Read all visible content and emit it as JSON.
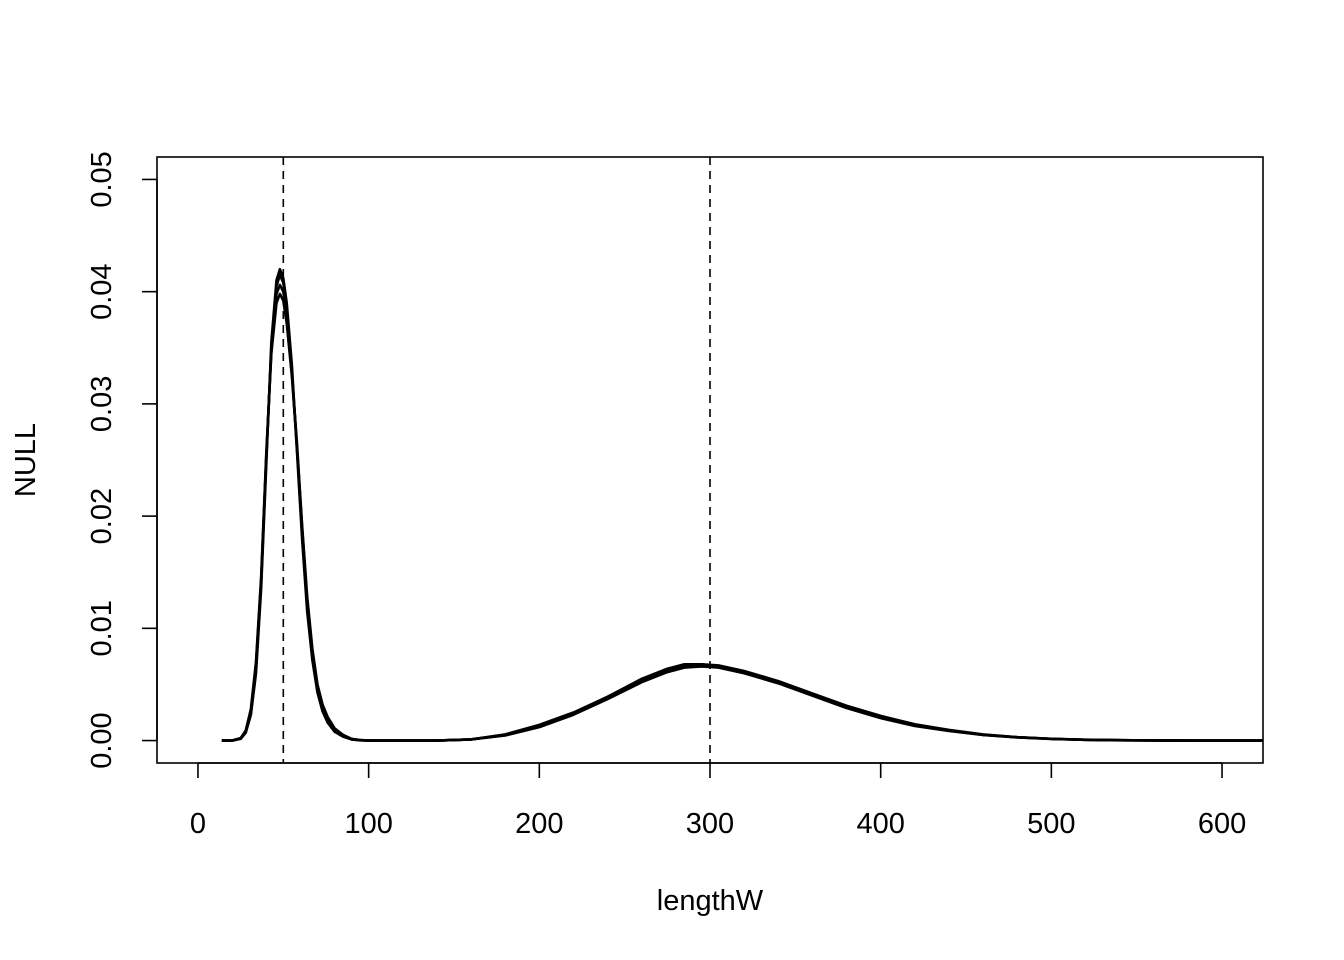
{
  "chart_data": {
    "type": "line",
    "title": "",
    "xlabel": "lengthW",
    "ylabel": "NULL",
    "xlim": [
      -24,
      624
    ],
    "ylim": [
      -0.002,
      0.052
    ],
    "x_ticks": [
      0,
      100,
      200,
      300,
      400,
      500,
      600
    ],
    "x_tick_labels": [
      "0",
      "100",
      "200",
      "300",
      "400",
      "500",
      "600"
    ],
    "y_ticks": [
      0.0,
      0.01,
      0.02,
      0.03,
      0.04,
      0.05
    ],
    "y_tick_labels": [
      "0.00",
      "0.01",
      "0.02",
      "0.03",
      "0.04",
      "0.05"
    ],
    "grid": false,
    "legend": "none",
    "line_color": "#000000",
    "reference_lines": [
      {
        "orientation": "vertical",
        "x": 50,
        "style": "dashed"
      },
      {
        "orientation": "vertical",
        "x": 300,
        "style": "dashed"
      }
    ],
    "series": [
      {
        "x": [
          14,
          20,
          25,
          28,
          31,
          34,
          37,
          40,
          43,
          46,
          48,
          50,
          52,
          55,
          58,
          61,
          64,
          67,
          70,
          73,
          76,
          80,
          85,
          90,
          95,
          100,
          110,
          120,
          140,
          160,
          180,
          200,
          220,
          240,
          260,
          275,
          285,
          295,
          305,
          320,
          340,
          360,
          380,
          400,
          420,
          440,
          460,
          480,
          500,
          520,
          540,
          560,
          580,
          600,
          624
        ],
        "y": [
          0.0,
          0.0,
          0.0002,
          0.0008,
          0.0025,
          0.0065,
          0.014,
          0.025,
          0.035,
          0.0405,
          0.0415,
          0.0408,
          0.0385,
          0.033,
          0.026,
          0.0185,
          0.012,
          0.0075,
          0.0045,
          0.0028,
          0.0018,
          0.0009,
          0.0004,
          0.0001,
          3e-05,
          0.0,
          0.0,
          0.0,
          0.0,
          0.0001,
          0.0005,
          0.0013,
          0.0024,
          0.0038,
          0.0053,
          0.0062,
          0.0066,
          0.0067,
          0.0066,
          0.0061,
          0.0052,
          0.0041,
          0.003,
          0.0021,
          0.0014,
          0.0009,
          0.0005,
          0.0003,
          0.00015,
          7e-05,
          3e-05,
          1e-05,
          0.0,
          0.0,
          0.0
        ]
      },
      {
        "x": [
          14,
          20,
          25,
          28,
          31,
          34,
          37,
          40,
          43,
          46,
          48,
          50,
          52,
          55,
          58,
          61,
          64,
          67,
          70,
          73,
          76,
          80,
          85,
          90,
          95,
          100,
          110,
          120,
          140,
          160,
          180,
          200,
          220,
          240,
          260,
          275,
          285,
          295,
          305,
          320,
          340,
          360,
          380,
          400,
          420,
          440,
          460,
          480,
          500,
          520,
          540,
          560,
          580,
          600,
          624
        ],
        "y": [
          0.0,
          0.0,
          0.0002,
          0.0009,
          0.0028,
          0.007,
          0.0145,
          0.0255,
          0.0345,
          0.039,
          0.0398,
          0.0392,
          0.0372,
          0.0325,
          0.0262,
          0.019,
          0.0125,
          0.008,
          0.0049,
          0.0031,
          0.002,
          0.001,
          0.0005,
          0.00015,
          5e-05,
          0.0,
          0.0,
          0.0,
          0.0,
          0.0001,
          0.00055,
          0.0014,
          0.0025,
          0.0039,
          0.0055,
          0.0064,
          0.0068,
          0.0068,
          0.0067,
          0.0062,
          0.0053,
          0.0042,
          0.0031,
          0.0022,
          0.00145,
          0.00095,
          0.00055,
          0.0003,
          0.00016,
          8e-05,
          3e-05,
          1e-05,
          0.0,
          0.0,
          0.0
        ]
      },
      {
        "x": [
          14,
          20,
          25,
          28,
          31,
          34,
          37,
          40,
          43,
          46,
          48,
          50,
          52,
          55,
          58,
          61,
          64,
          67,
          70,
          73,
          76,
          80,
          85,
          90,
          95,
          100,
          110,
          120,
          140,
          160,
          180,
          200,
          220,
          240,
          260,
          275,
          285,
          295,
          305,
          320,
          340,
          360,
          380,
          400,
          420,
          440,
          460,
          480,
          500,
          520,
          540,
          560,
          580,
          600,
          624
        ],
        "y": [
          0.0,
          0.0,
          0.00015,
          0.0007,
          0.0023,
          0.006,
          0.0135,
          0.0245,
          0.0355,
          0.041,
          0.042,
          0.0412,
          0.039,
          0.0335,
          0.0258,
          0.018,
          0.0115,
          0.0072,
          0.0043,
          0.0026,
          0.0016,
          0.0008,
          0.00035,
          0.0001,
          2e-05,
          0.0,
          0.0,
          0.0,
          0.0,
          0.0001,
          0.00045,
          0.0012,
          0.0023,
          0.0037,
          0.0052,
          0.0061,
          0.0065,
          0.0066,
          0.0065,
          0.006,
          0.0051,
          0.004,
          0.0029,
          0.002,
          0.0013,
          0.00085,
          0.0005,
          0.00028,
          0.00014,
          6e-05,
          2e-05,
          1e-05,
          0.0,
          0.0,
          0.0
        ]
      },
      {
        "x": [
          14,
          20,
          25,
          28,
          31,
          34,
          37,
          40,
          43,
          46,
          48,
          50,
          52,
          55,
          58,
          61,
          64,
          67,
          70,
          73,
          76,
          80,
          85,
          90,
          95,
          100,
          110,
          120,
          140,
          160,
          180,
          200,
          220,
          240,
          260,
          275,
          285,
          295,
          305,
          320,
          340,
          360,
          380,
          400,
          420,
          440,
          460,
          480,
          500,
          520,
          540,
          560,
          580,
          600,
          624
        ],
        "y": [
          0.0,
          0.0,
          0.0002,
          0.0008,
          0.0026,
          0.0068,
          0.0142,
          0.0252,
          0.0348,
          0.0398,
          0.0406,
          0.04,
          0.038,
          0.0328,
          0.0265,
          0.0192,
          0.0128,
          0.0082,
          0.005,
          0.0032,
          0.0021,
          0.0011,
          0.0005,
          0.00015,
          4e-05,
          0.0,
          0.0,
          0.0,
          0.0,
          0.0001,
          0.0005,
          0.00135,
          0.00245,
          0.0039,
          0.0054,
          0.0063,
          0.0067,
          0.0068,
          0.0066,
          0.0061,
          0.0052,
          0.0041,
          0.003,
          0.0021,
          0.0014,
          0.0009,
          0.00052,
          0.00029,
          0.00015,
          7e-05,
          3e-05,
          1e-05,
          0.0,
          0.0,
          0.0
        ]
      }
    ]
  }
}
